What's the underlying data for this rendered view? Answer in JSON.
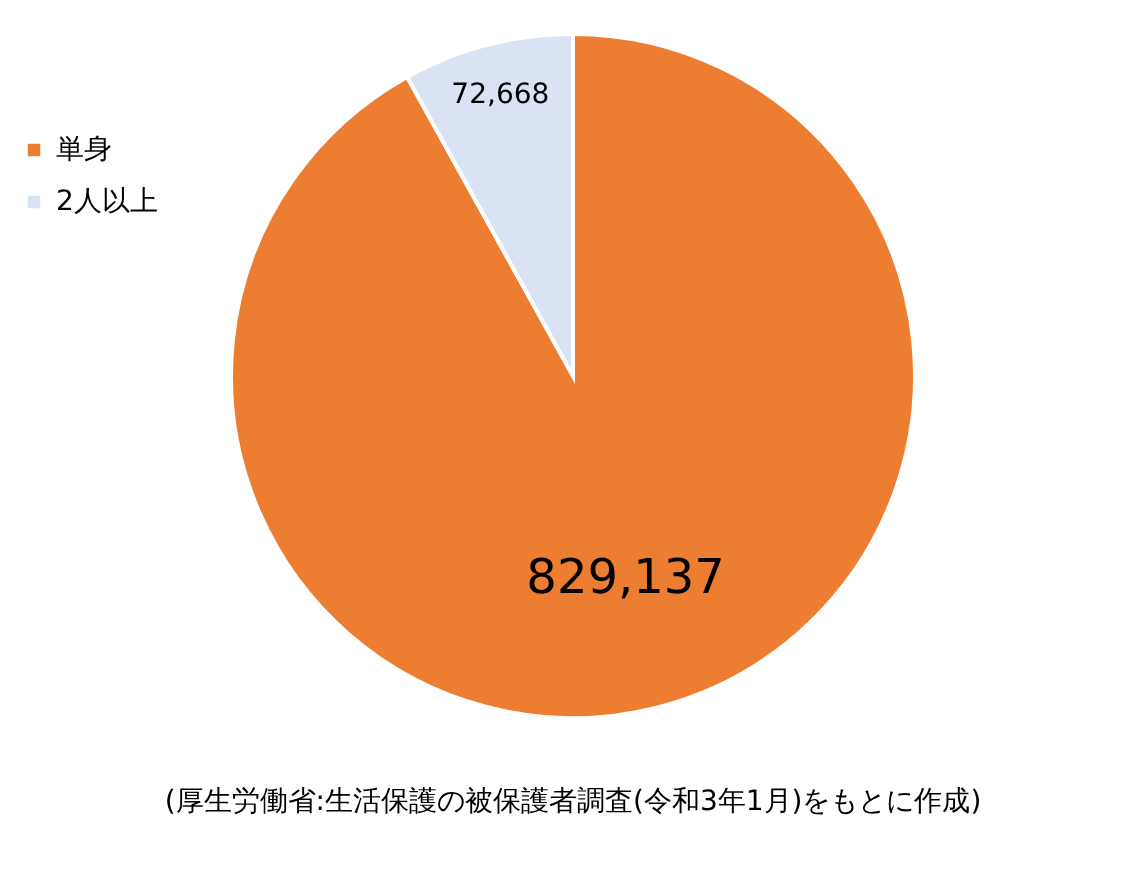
{
  "chart_data": {
    "type": "pie",
    "categories": [
      "単身",
      "2人以上"
    ],
    "values": [
      829137,
      72668
    ],
    "colors": [
      "#ed7d31",
      "#dae3f3"
    ],
    "value_labels": [
      "829,137",
      "72,668"
    ],
    "legend": "top left",
    "annotations": [
      "(厚生労働省:生活保護の被保護者調査(令和3年1月)をもとに作成)"
    ]
  }
}
